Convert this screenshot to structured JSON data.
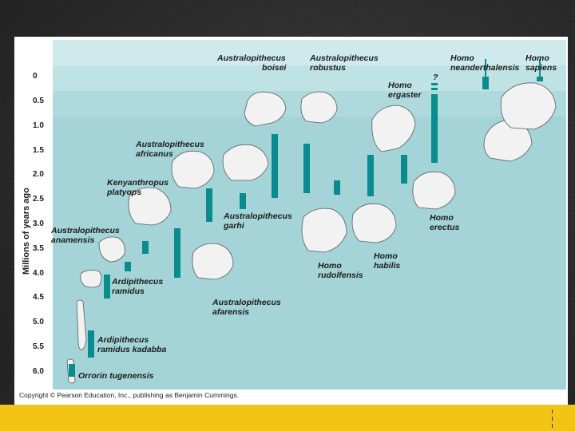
{
  "diagram": {
    "y_axis_label": "Millions of years ago",
    "y_ticks": [
      "0",
      "0.5",
      "1.0",
      "1.5",
      "2.0",
      "2.5",
      "3.0",
      "3.5",
      "4.0",
      "4.5",
      "5.0",
      "5.5",
      "6.0"
    ],
    "species_labels": [
      {
        "line1": "Australopithecus",
        "line2": "boisei"
      },
      {
        "line1": "Australopithecus",
        "line2": "robustus"
      },
      {
        "line1": "Homo",
        "line2": "neanderthalensis"
      },
      {
        "line1": "Homo",
        "line2": "sapiens"
      },
      {
        "line1": "Homo",
        "line2": "ergaster"
      },
      {
        "line1": "Australopithecus",
        "line2": "africanus"
      },
      {
        "line1": "Kenyanthropus",
        "line2": "platyops"
      },
      {
        "line1": "Australopithecus",
        "line2": "garhi"
      },
      {
        "line1": "Australopithecus",
        "line2": "anamensis"
      },
      {
        "line1": "Homo",
        "line2": "erectus"
      },
      {
        "line1": "Homo",
        "line2": "habilis"
      },
      {
        "line1": "Homo",
        "line2": "rudolfensis"
      },
      {
        "line1": "Ardipithecus",
        "line2": "ramidus"
      },
      {
        "line1": "Australopithecus",
        "line2": "afarensis"
      },
      {
        "line1": "Ardipithecus",
        "line2": "ramidus kadabba"
      },
      {
        "line1": "Orrorin tugenensis",
        "line2": ""
      }
    ],
    "question_mark": "?",
    "copyright": "Copyright © Pearson Education, Inc., publishing as Benjamin Cummings.",
    "colors": {
      "band_a": "#cfeaec",
      "band_b": "#a4d4d7",
      "range_bar": "#0a8c8c",
      "slide_bg": "#ffffff",
      "accent_bar": "#f2c514"
    }
  }
}
